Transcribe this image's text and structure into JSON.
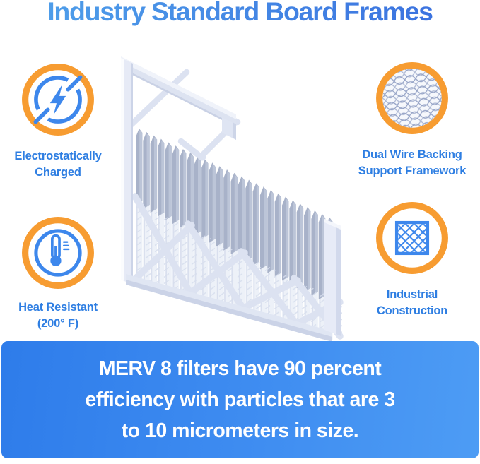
{
  "title": "Industry Standard Board Frames",
  "features": [
    {
      "id": "electrostatically-charged",
      "icon": "lightning-icon",
      "label_lines": [
        "Electrostatically",
        "Charged"
      ]
    },
    {
      "id": "dual-wire-backing",
      "icon": "wire-mesh-icon",
      "label_lines": [
        "Dual Wire Backing",
        "Support Framework"
      ]
    },
    {
      "id": "heat-resistant",
      "icon": "thermometer-icon",
      "label_lines": [
        "Heat Resistant",
        "(200° F)"
      ]
    },
    {
      "id": "industrial-construction",
      "icon": "lattice-grid-icon",
      "label_lines": [
        "Industrial",
        "Construction"
      ]
    }
  ],
  "banner": {
    "lines": [
      "MERV 8 filters have 90 percent",
      "efficiency with particles that are 3",
      "to 10 micrometers in size."
    ]
  },
  "product_image": {
    "alt": "Pleated MERV 8 air filter with industry standard board frame, corner cutaway view"
  },
  "colors": {
    "accent_orange": "#F79C31",
    "accent_blue": "#3D87EC",
    "label_blue": "#2E7EE2",
    "title_gradient_start": "#4FA0EA",
    "title_gradient_end": "#3A70DF",
    "banner_gradient_start": "#2E7CEA",
    "banner_gradient_end": "#4D9CF4",
    "banner_text": "#FFFFFF",
    "filter_frame": "#E0E6F3",
    "filter_pleat_gray": "#A8B2C9"
  }
}
